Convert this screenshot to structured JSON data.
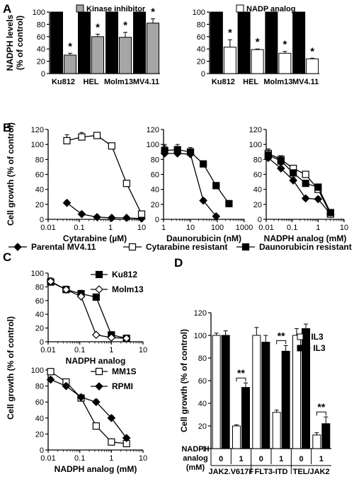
{
  "panel_labels": {
    "a": "A",
    "b": "B",
    "c": "C",
    "d": "D"
  },
  "chart_data": [
    {
      "id": "A1",
      "type": "bar",
      "ylabel": "NADPH levels\n(% of control)",
      "ylim": [
        0,
        100
      ],
      "yticks": [
        0,
        20,
        40,
        60,
        80,
        100
      ],
      "categories": [
        "Ku812",
        "HEL",
        "Molm13",
        "MV4.11"
      ],
      "series": [
        {
          "name": "",
          "values": [
            100,
            100,
            100,
            100
          ],
          "color": "#000000"
        },
        {
          "name": "Kinase inhibitor",
          "values": [
            30,
            60,
            59,
            82
          ],
          "errors": [
            3,
            4,
            8,
            7
          ],
          "color": "#a6a6a6"
        }
      ],
      "annotations": [
        "*",
        "*",
        "*",
        "*"
      ]
    },
    {
      "id": "A2",
      "type": "bar",
      "ylim": [
        0,
        100
      ],
      "yticks": [
        0,
        20,
        40,
        60,
        80,
        100
      ],
      "categories": [
        "Ku812",
        "HEL",
        "Molm13",
        "MV4.11"
      ],
      "series": [
        {
          "name": "",
          "values": [
            100,
            100,
            100,
            100
          ],
          "color": "#000000"
        },
        {
          "name": "NADP analog",
          "values": [
            43,
            39,
            33,
            24
          ],
          "errors": [
            12,
            1,
            3,
            1
          ],
          "color": "#ffffff"
        }
      ],
      "annotations": [
        "*",
        "*",
        "*",
        "*"
      ]
    },
    {
      "id": "B1",
      "type": "line",
      "xscale": "log",
      "xlabel": "Cytarabine (µM)",
      "ylabel": "Cell growth (% of control)",
      "xlim": [
        0.01,
        10
      ],
      "xticks": [
        "0.01",
        "0.1",
        "1",
        "10"
      ],
      "ylim": [
        0,
        120
      ],
      "yticks": [
        0,
        20,
        40,
        60,
        80,
        100,
        120
      ],
      "series": [
        {
          "name": "Parental MV4.11",
          "marker": "diamond",
          "x": [
            0.04,
            0.12,
            0.37,
            1.1,
            3.3,
            10
          ],
          "y": [
            22,
            7,
            3,
            2,
            2,
            1
          ],
          "errors": [
            3,
            2,
            1,
            1,
            1,
            1
          ]
        },
        {
          "name": "Cytarabine resistant",
          "marker": "square-open",
          "x": [
            0.04,
            0.12,
            0.37,
            1.1,
            3.3,
            10
          ],
          "y": [
            105,
            110,
            112,
            98,
            48,
            7
          ],
          "errors": [
            8,
            6,
            4,
            3,
            4,
            3
          ]
        }
      ]
    },
    {
      "id": "B2",
      "type": "line",
      "xscale": "log",
      "xlabel": "Daunorubicin (nM)",
      "xlim": [
        1,
        1000
      ],
      "xticks": [
        "1",
        "10",
        "100",
        "1000"
      ],
      "ylim": [
        0,
        120
      ],
      "yticks": [
        0,
        20,
        40,
        60,
        80,
        100,
        120
      ],
      "series": [
        {
          "name": "Parental MV4.11",
          "marker": "diamond",
          "x": [
            1.1,
            3.3,
            10,
            30,
            90
          ],
          "y": [
            88,
            88,
            87,
            25,
            4
          ],
          "errors": [
            10,
            6,
            4,
            3,
            1
          ]
        },
        {
          "name": "Daunorubicin resistant",
          "marker": "square",
          "x": [
            1.1,
            3.3,
            10,
            30,
            90,
            270
          ],
          "y": [
            92,
            93,
            90,
            74,
            45,
            21
          ],
          "errors": [
            8,
            7,
            6,
            4,
            3,
            2
          ]
        }
      ]
    },
    {
      "id": "B3",
      "type": "line",
      "xscale": "log",
      "xlabel": "NADPH analog (mM)",
      "xlim": [
        0.01,
        10
      ],
      "xticks": [
        "0.01",
        "0.1",
        "1",
        "10"
      ],
      "ylim": [
        0,
        120
      ],
      "yticks": [
        0,
        20,
        40,
        60,
        80,
        100,
        120
      ],
      "series": [
        {
          "name": "Parental MV4.11",
          "marker": "diamond",
          "x": [
            0.012,
            0.037,
            0.11,
            0.33,
            1,
            3
          ],
          "y": [
            82,
            68,
            52,
            28,
            27,
            7
          ],
          "errors": [
            6,
            5,
            4,
            3,
            3,
            2
          ]
        },
        {
          "name": "Cytarabine resistant",
          "marker": "square-open",
          "x": [
            0.012,
            0.037,
            0.11,
            0.33,
            1,
            3
          ],
          "y": [
            88,
            80,
            68,
            60,
            40,
            7
          ],
          "errors": [
            6,
            5,
            4,
            4,
            3,
            2
          ]
        },
        {
          "name": "Daunorubicin resistant",
          "marker": "square",
          "x": [
            0.012,
            0.037,
            0.11,
            0.33,
            1,
            3
          ],
          "y": [
            86,
            78,
            62,
            48,
            43,
            9
          ],
          "errors": [
            6,
            5,
            4,
            4,
            3,
            2
          ]
        }
      ]
    },
    {
      "id": "C1",
      "type": "line",
      "xscale": "log",
      "xlabel": "NADPH analog",
      "xlim": [
        0.01,
        10
      ],
      "xticks": [
        "0.01",
        "0.1",
        "1",
        "10"
      ],
      "ylim": [
        0,
        100
      ],
      "yticks": [
        0,
        20,
        40,
        60,
        80,
        100
      ],
      "series": [
        {
          "name": "Ku812",
          "marker": "square",
          "x": [
            0.012,
            0.037,
            0.11,
            0.33,
            1,
            3
          ],
          "y": [
            87,
            76,
            70,
            65,
            10,
            5
          ],
          "errors": [
            4,
            5,
            5,
            4,
            2,
            1
          ]
        },
        {
          "name": "Molm13",
          "marker": "diamond-open",
          "x": [
            0.012,
            0.037,
            0.11,
            0.33,
            1,
            3
          ],
          "y": [
            88,
            76,
            66,
            10,
            6,
            5
          ],
          "errors": [
            5,
            5,
            5,
            2,
            1,
            1
          ]
        }
      ]
    },
    {
      "id": "C2",
      "type": "line",
      "xscale": "log",
      "xlabel": "NADPH analog (mM)",
      "ylabel": "Cell growth (% of control)",
      "xlim": [
        0.01,
        10
      ],
      "xticks": [
        "0.01",
        "0.1",
        "1",
        "10"
      ],
      "ylim": [
        0,
        100
      ],
      "yticks": [
        0,
        20,
        40,
        60,
        80,
        100
      ],
      "series": [
        {
          "name": "MM1S",
          "marker": "square-open",
          "x": [
            0.012,
            0.037,
            0.11,
            0.33,
            1,
            3
          ],
          "y": [
            98,
            85,
            65,
            30,
            10,
            8
          ],
          "errors": [
            3,
            3,
            3,
            3,
            2,
            1
          ]
        },
        {
          "name": "RPMI",
          "marker": "diamond",
          "x": [
            0.012,
            0.037,
            0.11,
            0.33,
            1,
            3
          ],
          "y": [
            88,
            80,
            66,
            60,
            40,
            15
          ],
          "errors": [
            3,
            3,
            3,
            3,
            3,
            2
          ]
        }
      ]
    },
    {
      "id": "D",
      "type": "bar",
      "ylabel": "Cell growth (% of control)",
      "ylim": [
        0,
        120
      ],
      "yticks": [
        0,
        20,
        40,
        60,
        80,
        100,
        120
      ],
      "row_label": [
        "NADPH",
        "analog",
        "(mM)"
      ],
      "groups": [
        "JAK2.V617F",
        "FLT3-ITD",
        "TEL/JAK2"
      ],
      "doses": [
        "0",
        "1",
        "0",
        "1",
        "0",
        "1"
      ],
      "series": [
        {
          "name": "- IL3",
          "values": [
            100,
            20,
            100,
            32,
            100,
            12
          ],
          "errors": [
            2,
            1,
            7,
            2,
            6,
            2
          ],
          "color": "#ffffff"
        },
        {
          "name": "+ IL3",
          "values": [
            100,
            54,
            94,
            86,
            106,
            22
          ],
          "errors": [
            4,
            4,
            6,
            5,
            4,
            6
          ],
          "color": "#000000"
        }
      ],
      "annotations": [
        "**",
        "**",
        "**"
      ]
    }
  ],
  "legend_b": [
    "Parental MV4.11",
    "Cytarabine resistant",
    "Daunorubicin resistant"
  ]
}
